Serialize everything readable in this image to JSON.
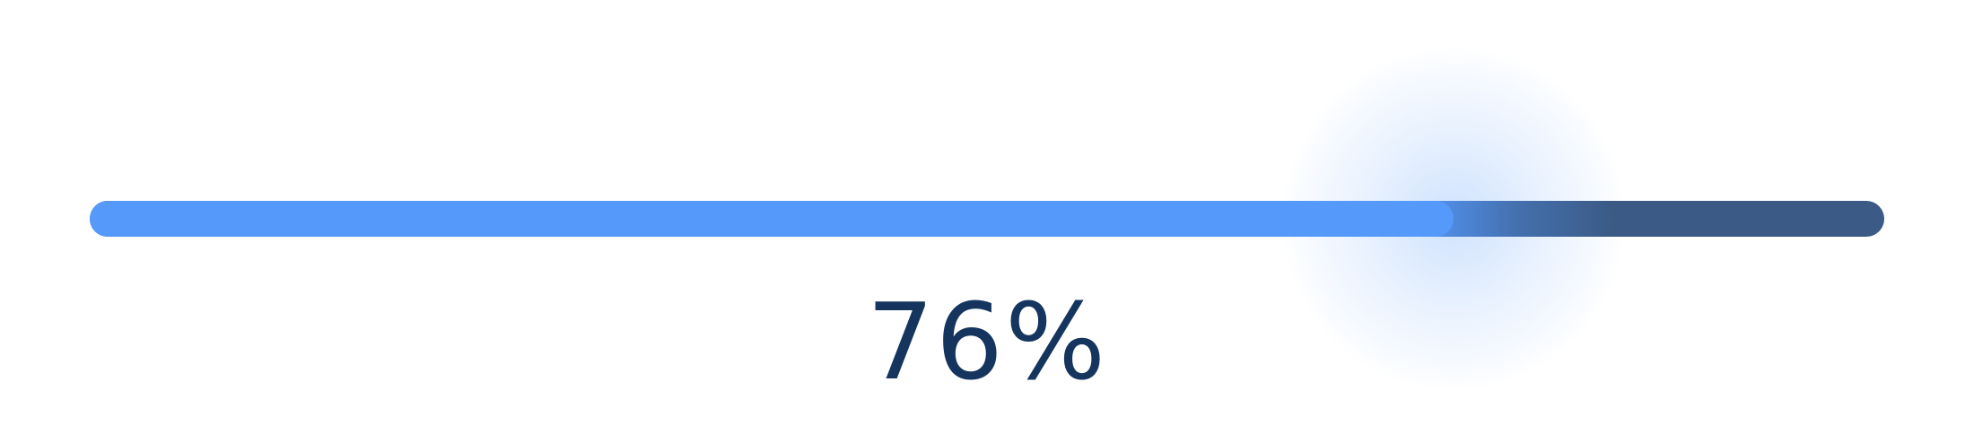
{
  "progress": {
    "value": 0.76,
    "label": "76%",
    "colors": {
      "fill": "#5599fb",
      "track": "#3b5a85",
      "text": "#15355e"
    }
  }
}
